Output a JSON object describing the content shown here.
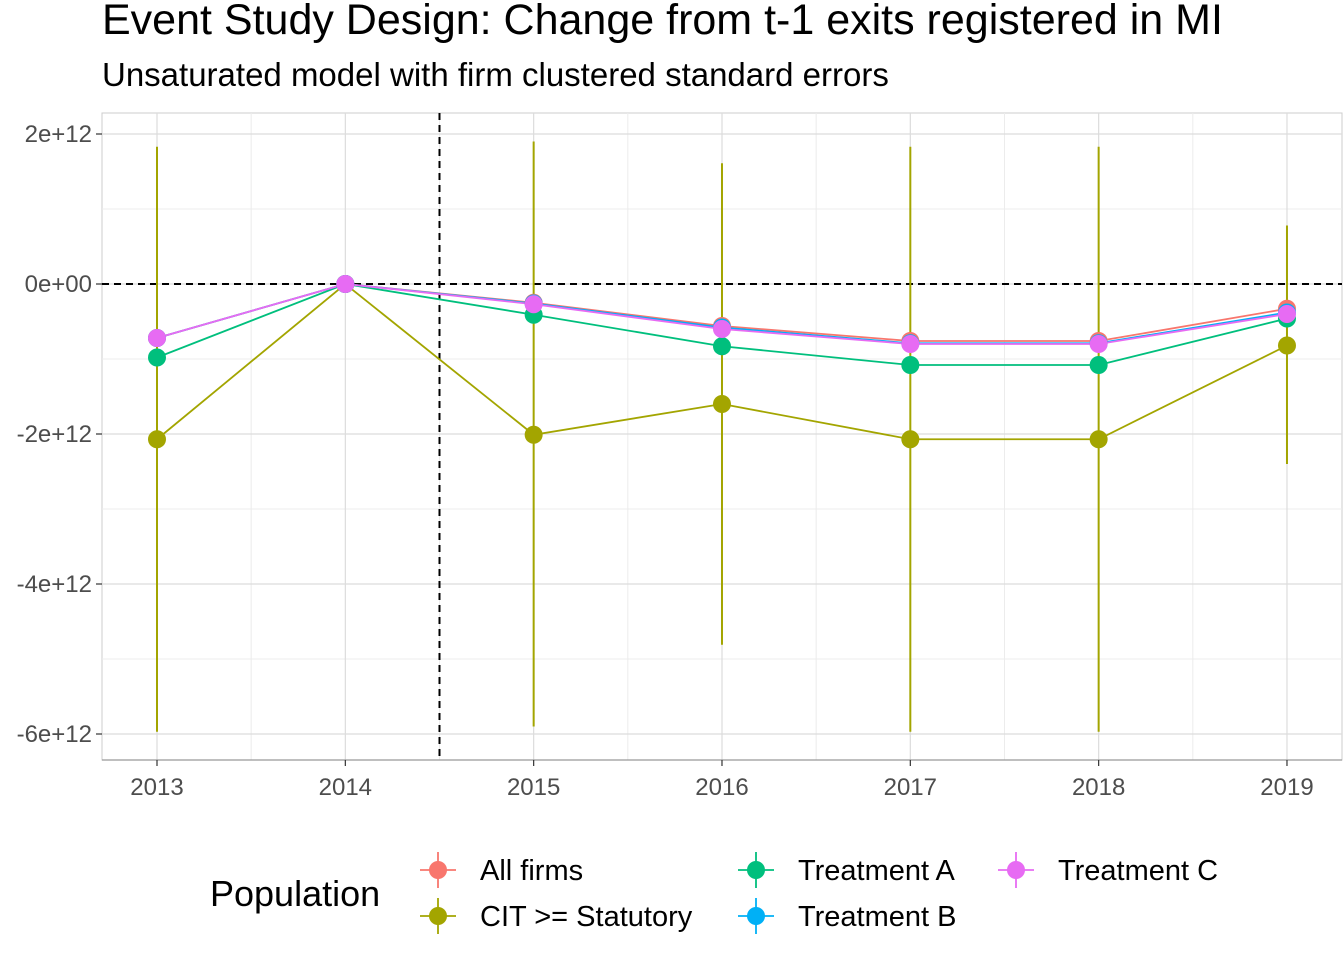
{
  "chart_data": {
    "type": "line",
    "title": "Event Study Design: Change from t-1 exits registered in MI",
    "subtitle": "Unsaturated model with firm clustered standard errors",
    "x": [
      "2013",
      "2014",
      "2015",
      "2016",
      "2017",
      "2018",
      "2019"
    ],
    "ylim": [
      -6350000000000.0,
      2300000000000.0
    ],
    "yticks": [
      2000000000000.0,
      0,
      -2000000000000.0,
      -4000000000000.0,
      -6000000000000.0
    ],
    "ytick_labels": [
      "2e+12",
      "0e+00",
      "-2e+12",
      "-4e+12",
      "-6e+12"
    ],
    "reference_lines": {
      "vertical_between": [
        "2014",
        "2015"
      ],
      "horizontal": 0
    },
    "grid": true,
    "legend": {
      "title": "Population",
      "position": "bottom"
    },
    "series": [
      {
        "name": "All firms",
        "color": "#F8766D",
        "values": [
          -720000000000.0,
          0,
          -250000000000.0,
          -560000000000.0,
          -760000000000.0,
          -760000000000.0,
          -330000000000.0
        ]
      },
      {
        "name": "CIT >= Statutory",
        "color": "#A3A500",
        "values": [
          -2070000000000.0,
          0,
          -2010000000000.0,
          -1600000000000.0,
          -2070000000000.0,
          -2070000000000.0,
          -820000000000.0
        ],
        "ci_low": [
          -5970000000000.0,
          0,
          -5900000000000.0,
          -4810000000000.0,
          -5970000000000.0,
          -5970000000000.0,
          -2400000000000.0
        ],
        "ci_high": [
          1830000000000.0,
          0,
          1900000000000.0,
          1610000000000.0,
          1830000000000.0,
          1830000000000.0,
          780000000000.0
        ]
      },
      {
        "name": "Treatment A",
        "color": "#00BF7D",
        "values": [
          -980000000000.0,
          0,
          -410000000000.0,
          -830000000000.0,
          -1080000000000.0,
          -1080000000000.0,
          -460000000000.0
        ]
      },
      {
        "name": "Treatment B",
        "color": "#00B0F6",
        "values": [
          -720000000000.0,
          0,
          -260000000000.0,
          -580000000000.0,
          -790000000000.0,
          -790000000000.0,
          -380000000000.0
        ]
      },
      {
        "name": "Treatment C",
        "color": "#E76BF3",
        "values": [
          -720000000000.0,
          0,
          -270000000000.0,
          -600000000000.0,
          -800000000000.0,
          -800000000000.0,
          -400000000000.0
        ]
      }
    ]
  }
}
